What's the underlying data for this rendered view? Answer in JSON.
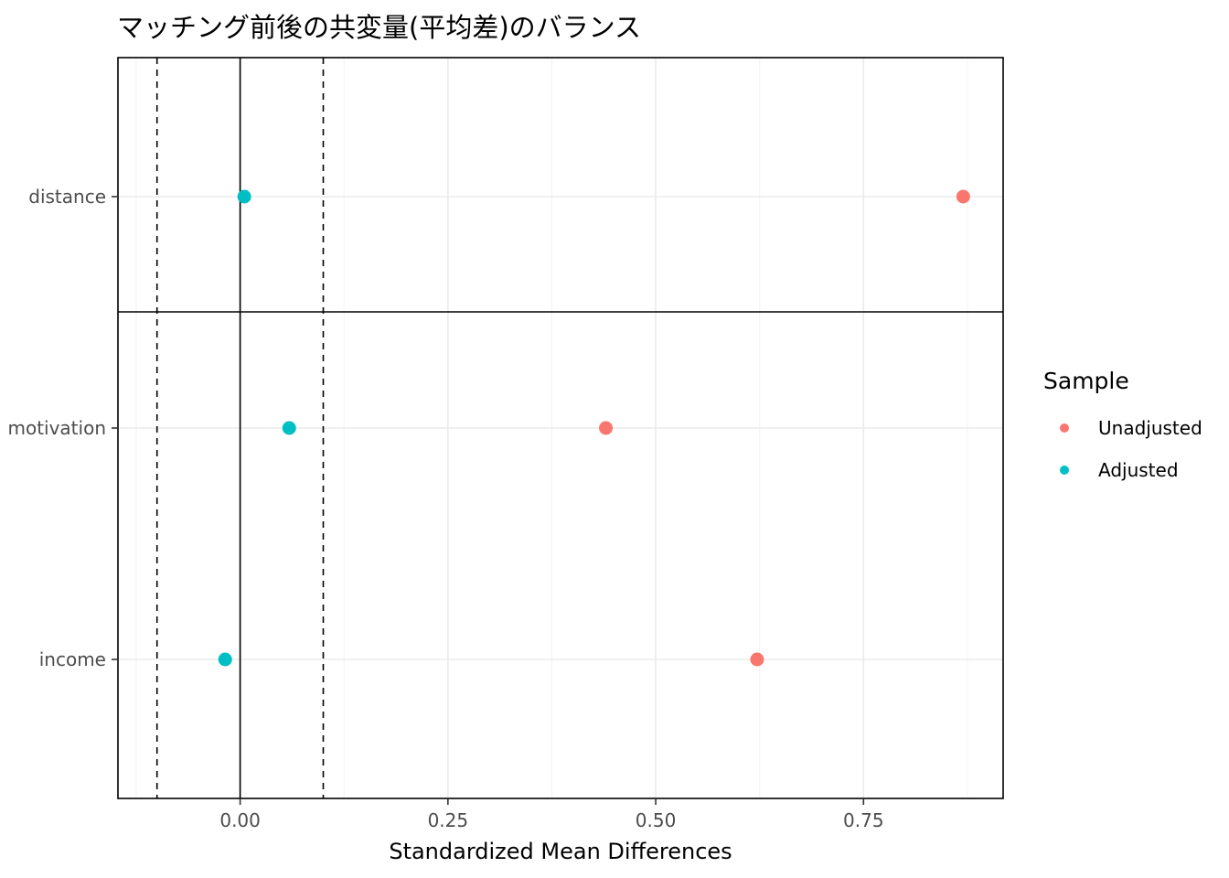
{
  "chart_data": {
    "type": "scatter",
    "title": "マッチング前後の共変量(平均差)のバランス",
    "xlabel": "Standardized Mean Differences",
    "ylabel": "",
    "categories": [
      "distance",
      "motivation",
      "income"
    ],
    "x_ticks": [
      "0.00",
      "0.25",
      "0.50",
      "0.75"
    ],
    "xlim": [
      -0.147,
      0.918
    ],
    "threshold_lines": [
      -0.1,
      0.1
    ],
    "zero_line": 0,
    "grid": true,
    "legend_position": "right",
    "series": [
      {
        "name": "Unadjusted",
        "color": "#F8766D",
        "values": [
          0.87,
          0.44,
          0.622
        ]
      },
      {
        "name": "Adjusted",
        "color": "#00BFC4",
        "values": [
          0.005,
          0.059,
          -0.018
        ]
      }
    ],
    "legend": {
      "title": "Sample",
      "entries": [
        "Unadjusted",
        "Adjusted"
      ]
    }
  }
}
